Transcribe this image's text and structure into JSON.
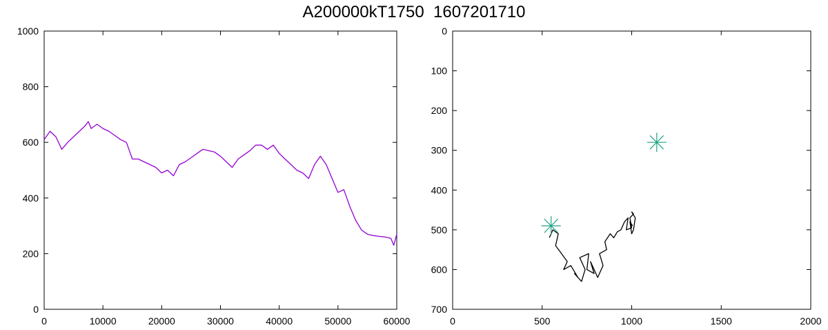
{
  "title": "A200000kT1750  1607201710",
  "chart_data": [
    {
      "type": "line",
      "title": "",
      "xlabel": "",
      "ylabel": "",
      "xlim": [
        0,
        60000
      ],
      "ylim": [
        0,
        1000
      ],
      "x_ticks": [
        "0",
        "10000",
        "20000",
        "30000",
        "40000",
        "50000",
        "60000"
      ],
      "y_ticks": [
        "0",
        "200",
        "400",
        "600",
        "800",
        "1000"
      ],
      "grid": false,
      "series": [
        {
          "color": "#9400d3",
          "x": [
            0,
            1000,
            2000,
            3000,
            4000,
            5000,
            6000,
            7000,
            7500,
            8000,
            9000,
            10000,
            11000,
            12000,
            13000,
            14000,
            15000,
            16000,
            17000,
            18000,
            19000,
            20000,
            21000,
            22000,
            23000,
            24000,
            25000,
            26000,
            27000,
            28000,
            29000,
            30000,
            31000,
            32000,
            33000,
            34000,
            35000,
            36000,
            37000,
            38000,
            39000,
            40000,
            41000,
            42000,
            43000,
            44000,
            45000,
            46000,
            47000,
            48000,
            49000,
            50000,
            51000,
            52000,
            53000,
            54000,
            55000,
            56000,
            57000,
            58000,
            59000,
            59500,
            60000
          ],
          "y": [
            610,
            640,
            620,
            575,
            600,
            620,
            640,
            660,
            675,
            650,
            665,
            650,
            640,
            625,
            610,
            600,
            540,
            540,
            530,
            520,
            510,
            490,
            500,
            480,
            520,
            530,
            545,
            560,
            575,
            570,
            565,
            550,
            530,
            510,
            540,
            555,
            570,
            590,
            590,
            575,
            590,
            560,
            540,
            520,
            500,
            490,
            470,
            520,
            550,
            520,
            470,
            420,
            430,
            370,
            320,
            285,
            270,
            265,
            262,
            260,
            255,
            230,
            270
          ]
        }
      ]
    },
    {
      "type": "line",
      "title": "",
      "xlabel": "",
      "ylabel": "",
      "xlim": [
        0,
        2000
      ],
      "ylim": [
        700,
        0
      ],
      "x_ticks": [
        "0",
        "500",
        "1000",
        "1500",
        "2000"
      ],
      "y_ticks": [
        "0",
        "100",
        "200",
        "300",
        "400",
        "500",
        "600",
        "700"
      ],
      "grid": false,
      "series": [
        {
          "color": "#000000",
          "x": [
            540,
            560,
            590,
            575,
            600,
            640,
            620,
            660,
            700,
            680,
            720,
            740,
            710,
            760,
            750,
            790,
            770,
            810,
            840,
            820,
            860,
            850,
            880,
            900,
            920,
            940,
            960,
            980,
            970,
            1000,
            990,
            1010,
            1000,
            1020,
            1010,
            1000,
            990,
            1005
          ],
          "y": [
            520,
            500,
            510,
            540,
            555,
            580,
            600,
            590,
            620,
            610,
            630,
            600,
            570,
            560,
            600,
            610,
            580,
            620,
            590,
            560,
            550,
            530,
            510,
            520,
            505,
            500,
            480,
            470,
            500,
            495,
            470,
            460,
            455,
            470,
            500,
            510,
            480,
            490
          ]
        }
      ],
      "markers": [
        {
          "x": 1140,
          "y": 280,
          "color": "#1fa285"
        },
        {
          "x": 550,
          "y": 490,
          "color": "#1fa285"
        }
      ]
    }
  ]
}
